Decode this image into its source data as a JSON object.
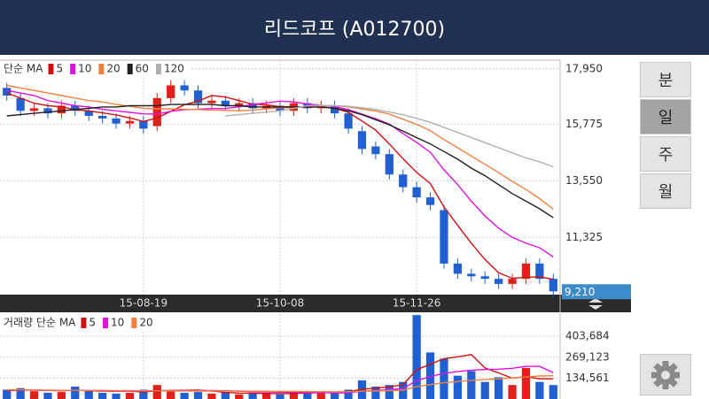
{
  "header": {
    "title": "리드코프 (A012700)"
  },
  "buttons": [
    "분",
    "일",
    "주",
    "월"
  ],
  "selected_button": 1,
  "chart_data": [
    {
      "type": "candlestick",
      "legend_title": "단순 MA",
      "categories": [
        null,
        null,
        null,
        null,
        null,
        null,
        null,
        null,
        null,
        null,
        "15-08-19",
        null,
        null,
        null,
        null,
        null,
        null,
        null,
        null,
        null,
        "15-10-08",
        null,
        null,
        null,
        null,
        null,
        null,
        null,
        null,
        null,
        "15-11-26",
        null,
        null,
        null,
        null,
        null,
        null,
        null,
        null,
        null,
        null
      ],
      "open": [
        17200,
        16800,
        16300,
        16400,
        16200,
        16500,
        16300,
        16100,
        16000,
        15800,
        15900,
        15700,
        16800,
        17300,
        17100,
        16600,
        16700,
        16500,
        16600,
        16400,
        16500,
        16300,
        16600,
        16400,
        16500,
        16200,
        15500,
        14900,
        14600,
        13800,
        13300,
        12900,
        12400,
        10300,
        9900,
        9800,
        9700,
        9500,
        9700,
        10300,
        9700
      ],
      "high": [
        17400,
        17000,
        16600,
        16600,
        16700,
        16700,
        16500,
        16300,
        16200,
        16100,
        16100,
        17000,
        17500,
        17500,
        17300,
        16900,
        16900,
        16800,
        16800,
        16700,
        16700,
        16800,
        16800,
        16700,
        16700,
        16400,
        15700,
        15100,
        14800,
        14000,
        13500,
        13100,
        12600,
        10500,
        10100,
        10000,
        9900,
        9900,
        10500,
        10500,
        9900
      ],
      "low": [
        16700,
        16100,
        16100,
        16000,
        16000,
        16100,
        15900,
        15800,
        15600,
        15600,
        15400,
        15500,
        16600,
        16900,
        16400,
        16400,
        16300,
        16300,
        16200,
        16200,
        16100,
        16100,
        16200,
        16200,
        16000,
        15400,
        14600,
        14400,
        13600,
        13100,
        12700,
        12400,
        10100,
        9700,
        9600,
        9500,
        9300,
        9300,
        9500,
        9500,
        9010
      ],
      "close": [
        16900,
        16300,
        16400,
        16200,
        16500,
        16300,
        16100,
        16000,
        15800,
        15900,
        15600,
        16800,
        17300,
        17100,
        16600,
        16700,
        16500,
        16600,
        16400,
        16500,
        16300,
        16600,
        16400,
        16500,
        16200,
        15600,
        14800,
        14600,
        13800,
        13300,
        12900,
        12600,
        10300,
        9900,
        9800,
        9700,
        9500,
        9700,
        10300,
        9700,
        9210
      ],
      "up_color": "#e0201a",
      "down_color": "#2060d0",
      "series": [
        {
          "name": "5",
          "color": "#d01010",
          "values": [
            17000,
            16800,
            16600,
            16500,
            16460,
            16340,
            16300,
            16220,
            16140,
            16020,
            15880,
            16020,
            16280,
            16540,
            16680,
            16900,
            16840,
            16700,
            16560,
            16540,
            16460,
            16460,
            16440,
            16460,
            16400,
            16240,
            15900,
            15540,
            15000,
            14420,
            13880,
            13440,
            12520,
            11800,
            11100,
            10460,
            9940,
            9720,
            9760,
            9780,
            9680
          ]
        },
        {
          "name": "10",
          "color": "#e010e0",
          "values": [
            17100,
            17000,
            16900,
            16700,
            16600,
            16500,
            16450,
            16360,
            16300,
            16240,
            16180,
            16170,
            16280,
            16340,
            16360,
            16390,
            16390,
            16460,
            16550,
            16610,
            16680,
            16650,
            16570,
            16510,
            16470,
            16350,
            16170,
            15990,
            15780,
            15410,
            15060,
            14670,
            13980,
            13400,
            12750,
            12170,
            11690,
            11330,
            11100,
            10920,
            10560
          ]
        },
        {
          "name": "20",
          "color": "#f08040",
          "values": [
            17300,
            17200,
            17100,
            17000,
            16900,
            16800,
            16700,
            16650,
            16550,
            16480,
            16400,
            16380,
            16370,
            16360,
            16350,
            16330,
            16320,
            16300,
            16330,
            16380,
            16420,
            16430,
            16470,
            16500,
            16500,
            16460,
            16370,
            16290,
            16170,
            15970,
            15770,
            15520,
            15170,
            14850,
            14520,
            14200,
            13870,
            13530,
            13210,
            12850,
            12430
          ]
        },
        {
          "name": "60",
          "color": "#202020",
          "values": [
            16100,
            16150,
            16200,
            16250,
            16300,
            16350,
            16400,
            16450,
            16450,
            16500,
            16500,
            16500,
            16550,
            16550,
            16550,
            16550,
            16500,
            16500,
            16450,
            16450,
            16450,
            16450,
            16450,
            16450,
            16400,
            16300,
            16150,
            15950,
            15750,
            15500,
            15250,
            15000,
            14700,
            14400,
            14050,
            13750,
            13400,
            13050,
            12750,
            12450,
            12100
          ]
        },
        {
          "name": "120",
          "color": "#b0b0b0",
          "values": [
            null,
            null,
            null,
            null,
            null,
            null,
            null,
            null,
            null,
            null,
            null,
            null,
            null,
            null,
            null,
            null,
            16100,
            16150,
            16200,
            16250,
            16300,
            16400,
            16500,
            16500,
            16500,
            16480,
            16420,
            16350,
            16250,
            16150,
            16000,
            15850,
            15650,
            15450,
            15250,
            15050,
            14850,
            14650,
            14450,
            14300,
            14100
          ]
        }
      ],
      "last_price": {
        "value": 9210,
        "label": "9,210"
      },
      "ylim": [
        9080,
        18290
      ],
      "yticks": [
        {
          "value": 17950,
          "label": "17,950"
        },
        {
          "value": 15775,
          "label": "15,775"
        },
        {
          "value": 13550,
          "label": "13,550"
        },
        {
          "value": 11325,
          "label": "11,325"
        }
      ],
      "grid": true
    },
    {
      "type": "bar",
      "legend_title": "거래량 단순 MA",
      "values": [
        60000,
        70000,
        50000,
        40000,
        45000,
        80000,
        50000,
        40000,
        35000,
        40000,
        60000,
        90000,
        50000,
        40000,
        45000,
        35000,
        40000,
        30000,
        35000,
        40000,
        30000,
        45000,
        40000,
        50000,
        40000,
        60000,
        120000,
        80000,
        90000,
        110000,
        540000,
        300000,
        260000,
        150000,
        180000,
        110000,
        140000,
        90000,
        200000,
        110000,
        90000
      ],
      "series": [
        {
          "name": "5",
          "color": "#d01010",
          "values": [
            55000,
            57000,
            58000,
            55000,
            53000,
            57000,
            53000,
            51000,
            50000,
            50000,
            45000,
            53000,
            55000,
            56000,
            57000,
            52000,
            42000,
            38000,
            37000,
            36000,
            35000,
            36000,
            38000,
            41000,
            41000,
            47000,
            63000,
            70000,
            78000,
            92000,
            188000,
            224000,
            260000,
            272000,
            286000,
            200000,
            168000,
            134000,
            144000,
            130000,
            130000
          ]
        },
        {
          "name": "10",
          "color": "#e010e0",
          "values": [
            58000,
            58000,
            57000,
            56000,
            55000,
            55000,
            55000,
            54000,
            53000,
            51000,
            51000,
            53000,
            53000,
            53000,
            53000,
            54000,
            53000,
            50000,
            47000,
            46000,
            44000,
            44000,
            41000,
            41000,
            39000,
            41000,
            50000,
            54000,
            60000,
            67000,
            118000,
            144000,
            166000,
            176000,
            186000,
            190000,
            192000,
            198000,
            210000,
            210000,
            170000
          ]
        },
        {
          "name": "20",
          "color": "#f08040",
          "values": [
            60000,
            59000,
            58000,
            57000,
            56000,
            56000,
            55000,
            55000,
            54000,
            54000,
            53000,
            53000,
            52000,
            52000,
            51000,
            51000,
            51000,
            51000,
            50000,
            50000,
            49000,
            49000,
            48000,
            47000,
            46000,
            47000,
            50000,
            52000,
            54000,
            57000,
            80000,
            93000,
            105000,
            112000,
            120000,
            125000,
            130000,
            135000,
            142000,
            148000,
            150000
          ]
        }
      ],
      "ylim": [
        0,
        547000
      ],
      "yticks": [
        {
          "value": 403684,
          "label": "403,684"
        },
        {
          "value": 269123,
          "label": "269,123"
        },
        {
          "value": 134561,
          "label": "134,561"
        }
      ],
      "grid": true
    }
  ]
}
